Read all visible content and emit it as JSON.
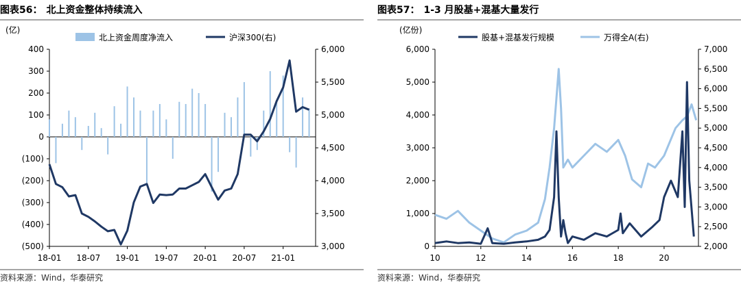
{
  "panels": [
    {
      "title_no": "图表56：",
      "title": "北上资金整体持续流入",
      "source": "资料来源：Wind，华泰研究"
    },
    {
      "title_no": "图表57：",
      "title": "1-3 月股基+混基大量发行",
      "source": "资料来源：Wind，华泰研究"
    }
  ],
  "chart_data": [
    {
      "type": "bar+line",
      "title": "北上资金整体持续流入",
      "y_left_unit": "(亿)",
      "y_left_range": [
        -500,
        400
      ],
      "y_left_ticks": [
        "400",
        "300",
        "200",
        "100",
        "0",
        "(100)",
        "(200)",
        "(300)",
        "(400)",
        "(500)"
      ],
      "y_right_range": [
        3000,
        6000
      ],
      "y_right_ticks": [
        "6,000",
        "5,500",
        "5,000",
        "4,500",
        "4,000",
        "3,500",
        "3,000"
      ],
      "x_range": [
        "2018-01",
        "2021-06"
      ],
      "x_ticks": [
        "18-01",
        "18-07",
        "19-01",
        "19-07",
        "20-01",
        "20-07",
        "21-01"
      ],
      "legend_position": "top",
      "series": [
        {
          "name": "北上资金周度净流入",
          "kind": "bar",
          "axis": "left",
          "color": "#9dc3e6",
          "x": [
            "2018-01",
            "2018-02",
            "2018-03",
            "2018-04",
            "2018-05",
            "2018-06",
            "2018-07",
            "2018-08",
            "2018-09",
            "2018-10",
            "2018-11",
            "2018-12",
            "2019-01",
            "2019-02",
            "2019-03",
            "2019-04",
            "2019-05",
            "2019-06",
            "2019-07",
            "2019-08",
            "2019-09",
            "2019-10",
            "2019-11",
            "2019-12",
            "2020-01",
            "2020-02",
            "2020-03",
            "2020-04",
            "2020-05",
            "2020-06",
            "2020-07",
            "2020-08",
            "2020-09",
            "2020-10",
            "2020-11",
            "2020-12",
            "2021-01",
            "2021-02",
            "2021-03",
            "2021-04",
            "2021-05"
          ],
          "values": [
            80,
            -120,
            60,
            120,
            90,
            -60,
            50,
            110,
            40,
            -80,
            140,
            60,
            230,
            180,
            120,
            -210,
            120,
            150,
            80,
            -100,
            160,
            150,
            220,
            200,
            150,
            -250,
            -160,
            110,
            90,
            180,
            250,
            -90,
            -60,
            120,
            300,
            160,
            280,
            -70,
            -140,
            180,
            130
          ]
        },
        {
          "name": "沪深300(右)",
          "kind": "line",
          "axis": "right",
          "color": "#1f3864",
          "x": [
            "2018-01",
            "2018-02",
            "2018-03",
            "2018-04",
            "2018-05",
            "2018-06",
            "2018-07",
            "2018-08",
            "2018-09",
            "2018-10",
            "2018-11",
            "2018-12",
            "2019-01",
            "2019-02",
            "2019-03",
            "2019-04",
            "2019-05",
            "2019-06",
            "2019-07",
            "2019-08",
            "2019-09",
            "2019-10",
            "2019-11",
            "2019-12",
            "2020-01",
            "2020-02",
            "2020-03",
            "2020-04",
            "2020-05",
            "2020-06",
            "2020-07",
            "2020-08",
            "2020-09",
            "2020-10",
            "2020-11",
            "2020-12",
            "2021-01",
            "2021-02",
            "2021-03",
            "2021-04",
            "2021-05"
          ],
          "values": [
            4250,
            3950,
            3900,
            3760,
            3780,
            3500,
            3450,
            3380,
            3300,
            3230,
            3250,
            3030,
            3240,
            3670,
            3910,
            3950,
            3660,
            3790,
            3780,
            3790,
            3880,
            3880,
            3930,
            3980,
            4100,
            3900,
            3710,
            3850,
            3880,
            4100,
            4700,
            4700,
            4600,
            4750,
            4940,
            5210,
            5420,
            5830,
            5050,
            5120,
            5080
          ]
        }
      ]
    },
    {
      "type": "line",
      "title": "1-3 月股基+混基大量发行",
      "y_left_unit": "(亿份)",
      "y_left_range": [
        0,
        6000
      ],
      "y_left_ticks": [
        "6,000",
        "5,000",
        "4,000",
        "3,000",
        "2,000",
        "1,000",
        "0"
      ],
      "y_right_range": [
        2000,
        7000
      ],
      "y_right_ticks": [
        "7,000",
        "6,500",
        "6,000",
        "5,500",
        "5,000",
        "4,500",
        "4,000",
        "3,500",
        "3,000",
        "2,500",
        "2,000"
      ],
      "x_range": [
        2010,
        2021.5
      ],
      "x_ticks": [
        "10",
        "12",
        "14",
        "16",
        "18",
        "20"
      ],
      "legend_position": "top",
      "series": [
        {
          "name": "股基+混基发行规模",
          "kind": "line",
          "axis": "left",
          "color": "#1f3864",
          "x": [
            2010.0,
            2010.5,
            2011.0,
            2011.5,
            2012.0,
            2012.3,
            2012.5,
            2013.0,
            2013.5,
            2014.0,
            2014.5,
            2014.8,
            2015.0,
            2015.2,
            2015.3,
            2015.4,
            2015.5,
            2015.6,
            2015.7,
            2015.8,
            2016.0,
            2016.5,
            2017.0,
            2017.5,
            2018.0,
            2018.1,
            2018.2,
            2018.5,
            2019.0,
            2019.5,
            2019.8,
            2020.0,
            2020.3,
            2020.6,
            2020.8,
            2020.9,
            2021.0,
            2021.1,
            2021.3
          ],
          "values": [
            100,
            150,
            100,
            120,
            80,
            550,
            100,
            80,
            120,
            150,
            200,
            300,
            500,
            1500,
            3500,
            1500,
            300,
            800,
            400,
            100,
            300,
            200,
            400,
            300,
            500,
            1000,
            400,
            700,
            300,
            600,
            800,
            1500,
            2000,
            1500,
            3500,
            1200,
            5000,
            2000,
            300
          ]
        },
        {
          "name": "万得全A(右)",
          "kind": "line",
          "axis": "right",
          "color": "#9dc3e6",
          "x": [
            2010.0,
            2010.5,
            2011.0,
            2011.5,
            2012.0,
            2012.5,
            2013.0,
            2013.5,
            2014.0,
            2014.5,
            2014.8,
            2015.0,
            2015.2,
            2015.4,
            2015.5,
            2015.6,
            2015.8,
            2016.0,
            2016.5,
            2017.0,
            2017.5,
            2018.0,
            2018.3,
            2018.6,
            2019.0,
            2019.3,
            2019.6,
            2020.0,
            2020.5,
            2020.8,
            2021.0,
            2021.2,
            2021.4
          ],
          "values": [
            2800,
            2700,
            2900,
            2600,
            2400,
            2200,
            2100,
            2300,
            2400,
            2600,
            3200,
            4000,
            5000,
            6500,
            5500,
            4000,
            4200,
            4000,
            4300,
            4600,
            4400,
            4700,
            4300,
            3700,
            3500,
            4100,
            4000,
            4300,
            5000,
            5200,
            5300,
            5600,
            5200
          ]
        }
      ]
    }
  ]
}
